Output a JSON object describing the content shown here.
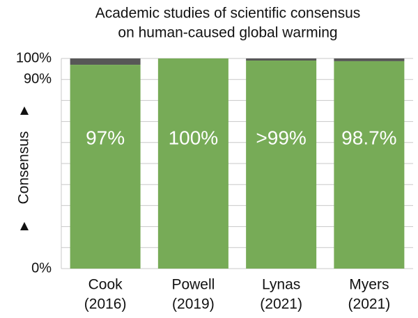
{
  "chart_data": {
    "type": "bar",
    "title": [
      "Academic studies of scientific consensus",
      "on human-caused global warming"
    ],
    "y_label": "Consensus",
    "categories": [
      [
        "Cook",
        "(2016)"
      ],
      [
        "Powell",
        "(2019)"
      ],
      [
        "Lynas",
        "(2021)"
      ],
      [
        "Myers",
        "(2021)"
      ]
    ],
    "values": [
      97,
      100,
      99,
      98.7
    ],
    "value_labels": [
      "97%",
      "100%",
      ">99%",
      "98.7%"
    ],
    "color": "#77ab57",
    "remainder_color": "#575757",
    "ylim": [
      0,
      100
    ],
    "yticks": [
      {
        "value": 0,
        "label": "0%"
      },
      {
        "value": 90,
        "label": "90%"
      },
      {
        "value": 100,
        "label": "100%"
      }
    ],
    "minor_yticks": [
      10,
      20,
      30,
      40,
      50,
      60,
      70,
      80
    ],
    "grid": true
  }
}
